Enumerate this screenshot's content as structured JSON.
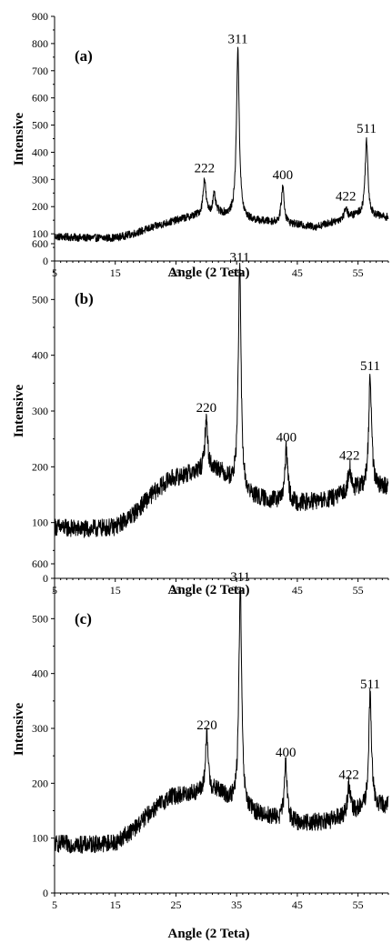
{
  "chart_data": [
    {
      "type": "line",
      "panel_label": "(a)",
      "xlabel": "Angle (2 Teta)",
      "ylabel": "Intensive",
      "xlim": [
        5,
        60
      ],
      "ylim": [
        0,
        900
      ],
      "xticks": [
        5,
        15,
        25,
        35,
        45,
        55
      ],
      "yticks": [
        0,
        100,
        200,
        300,
        400,
        500,
        600,
        700,
        800,
        900
      ],
      "baseline": [
        [
          5,
          90
        ],
        [
          10,
          85
        ],
        [
          15,
          85
        ],
        [
          18,
          100
        ],
        [
          22,
          130
        ],
        [
          26,
          155
        ],
        [
          28,
          165
        ],
        [
          32,
          175
        ],
        [
          37,
          150
        ],
        [
          42,
          140
        ],
        [
          48,
          125
        ],
        [
          52,
          150
        ],
        [
          55,
          170
        ],
        [
          60,
          160
        ]
      ],
      "noise_amplitude": 14,
      "peaks": [
        {
          "x": 29.7,
          "height": 300,
          "label": "222"
        },
        {
          "x": 31.3,
          "height": 240,
          "label": ""
        },
        {
          "x": 35.2,
          "height": 775,
          "label": "311"
        },
        {
          "x": 42.6,
          "height": 275,
          "label": "400"
        },
        {
          "x": 53.0,
          "height": 195,
          "label": "422"
        },
        {
          "x": 56.4,
          "height": 445,
          "label": "511"
        }
      ]
    },
    {
      "type": "line",
      "panel_label": "(b)",
      "xlabel": "Angle (2 Teta)",
      "ylabel": "Intensive",
      "xlim": [
        5,
        60
      ],
      "ylim": [
        0,
        600
      ],
      "xticks": [
        5,
        15,
        25,
        35,
        45,
        55
      ],
      "yticks": [
        0,
        100,
        200,
        300,
        400,
        500,
        600
      ],
      "baseline": [
        [
          5,
          92
        ],
        [
          10,
          88
        ],
        [
          15,
          92
        ],
        [
          18,
          115
        ],
        [
          21,
          150
        ],
        [
          24,
          178
        ],
        [
          28,
          190
        ],
        [
          32,
          195
        ],
        [
          36,
          150
        ],
        [
          40,
          140
        ],
        [
          45,
          135
        ],
        [
          50,
          140
        ],
        [
          55,
          160
        ],
        [
          60,
          165
        ]
      ],
      "noise_amplitude": 16,
      "peaks": [
        {
          "x": 30.0,
          "height": 285,
          "label": "220"
        },
        {
          "x": 35.5,
          "height": 555,
          "label": "311"
        },
        {
          "x": 43.2,
          "height": 232,
          "label": "400"
        },
        {
          "x": 53.6,
          "height": 200,
          "label": "422"
        },
        {
          "x": 57.0,
          "height": 360,
          "label": "511"
        }
      ]
    },
    {
      "type": "line",
      "panel_label": "(c)",
      "xlabel": "Angle (2 Teta)",
      "ylabel": "Intensive",
      "xlim": [
        5,
        60
      ],
      "ylim": [
        0,
        600
      ],
      "xticks": [
        5,
        15,
        25,
        35,
        45,
        55
      ],
      "yticks": [
        0,
        100,
        200,
        300,
        400,
        500,
        600
      ],
      "baseline": [
        [
          5,
          90
        ],
        [
          10,
          88
        ],
        [
          15,
          92
        ],
        [
          18,
          115
        ],
        [
          21,
          150
        ],
        [
          24,
          175
        ],
        [
          28,
          182
        ],
        [
          32,
          185
        ],
        [
          36,
          150
        ],
        [
          40,
          140
        ],
        [
          45,
          128
        ],
        [
          50,
          130
        ],
        [
          55,
          150
        ],
        [
          60,
          160
        ]
      ],
      "noise_amplitude": 16,
      "peaks": [
        {
          "x": 30.1,
          "height": 285,
          "label": "220"
        },
        {
          "x": 35.6,
          "height": 555,
          "label": "311"
        },
        {
          "x": 43.1,
          "height": 235,
          "label": "400"
        },
        {
          "x": 53.5,
          "height": 195,
          "label": "422"
        },
        {
          "x": 57.0,
          "height": 360,
          "label": "511"
        }
      ]
    }
  ]
}
